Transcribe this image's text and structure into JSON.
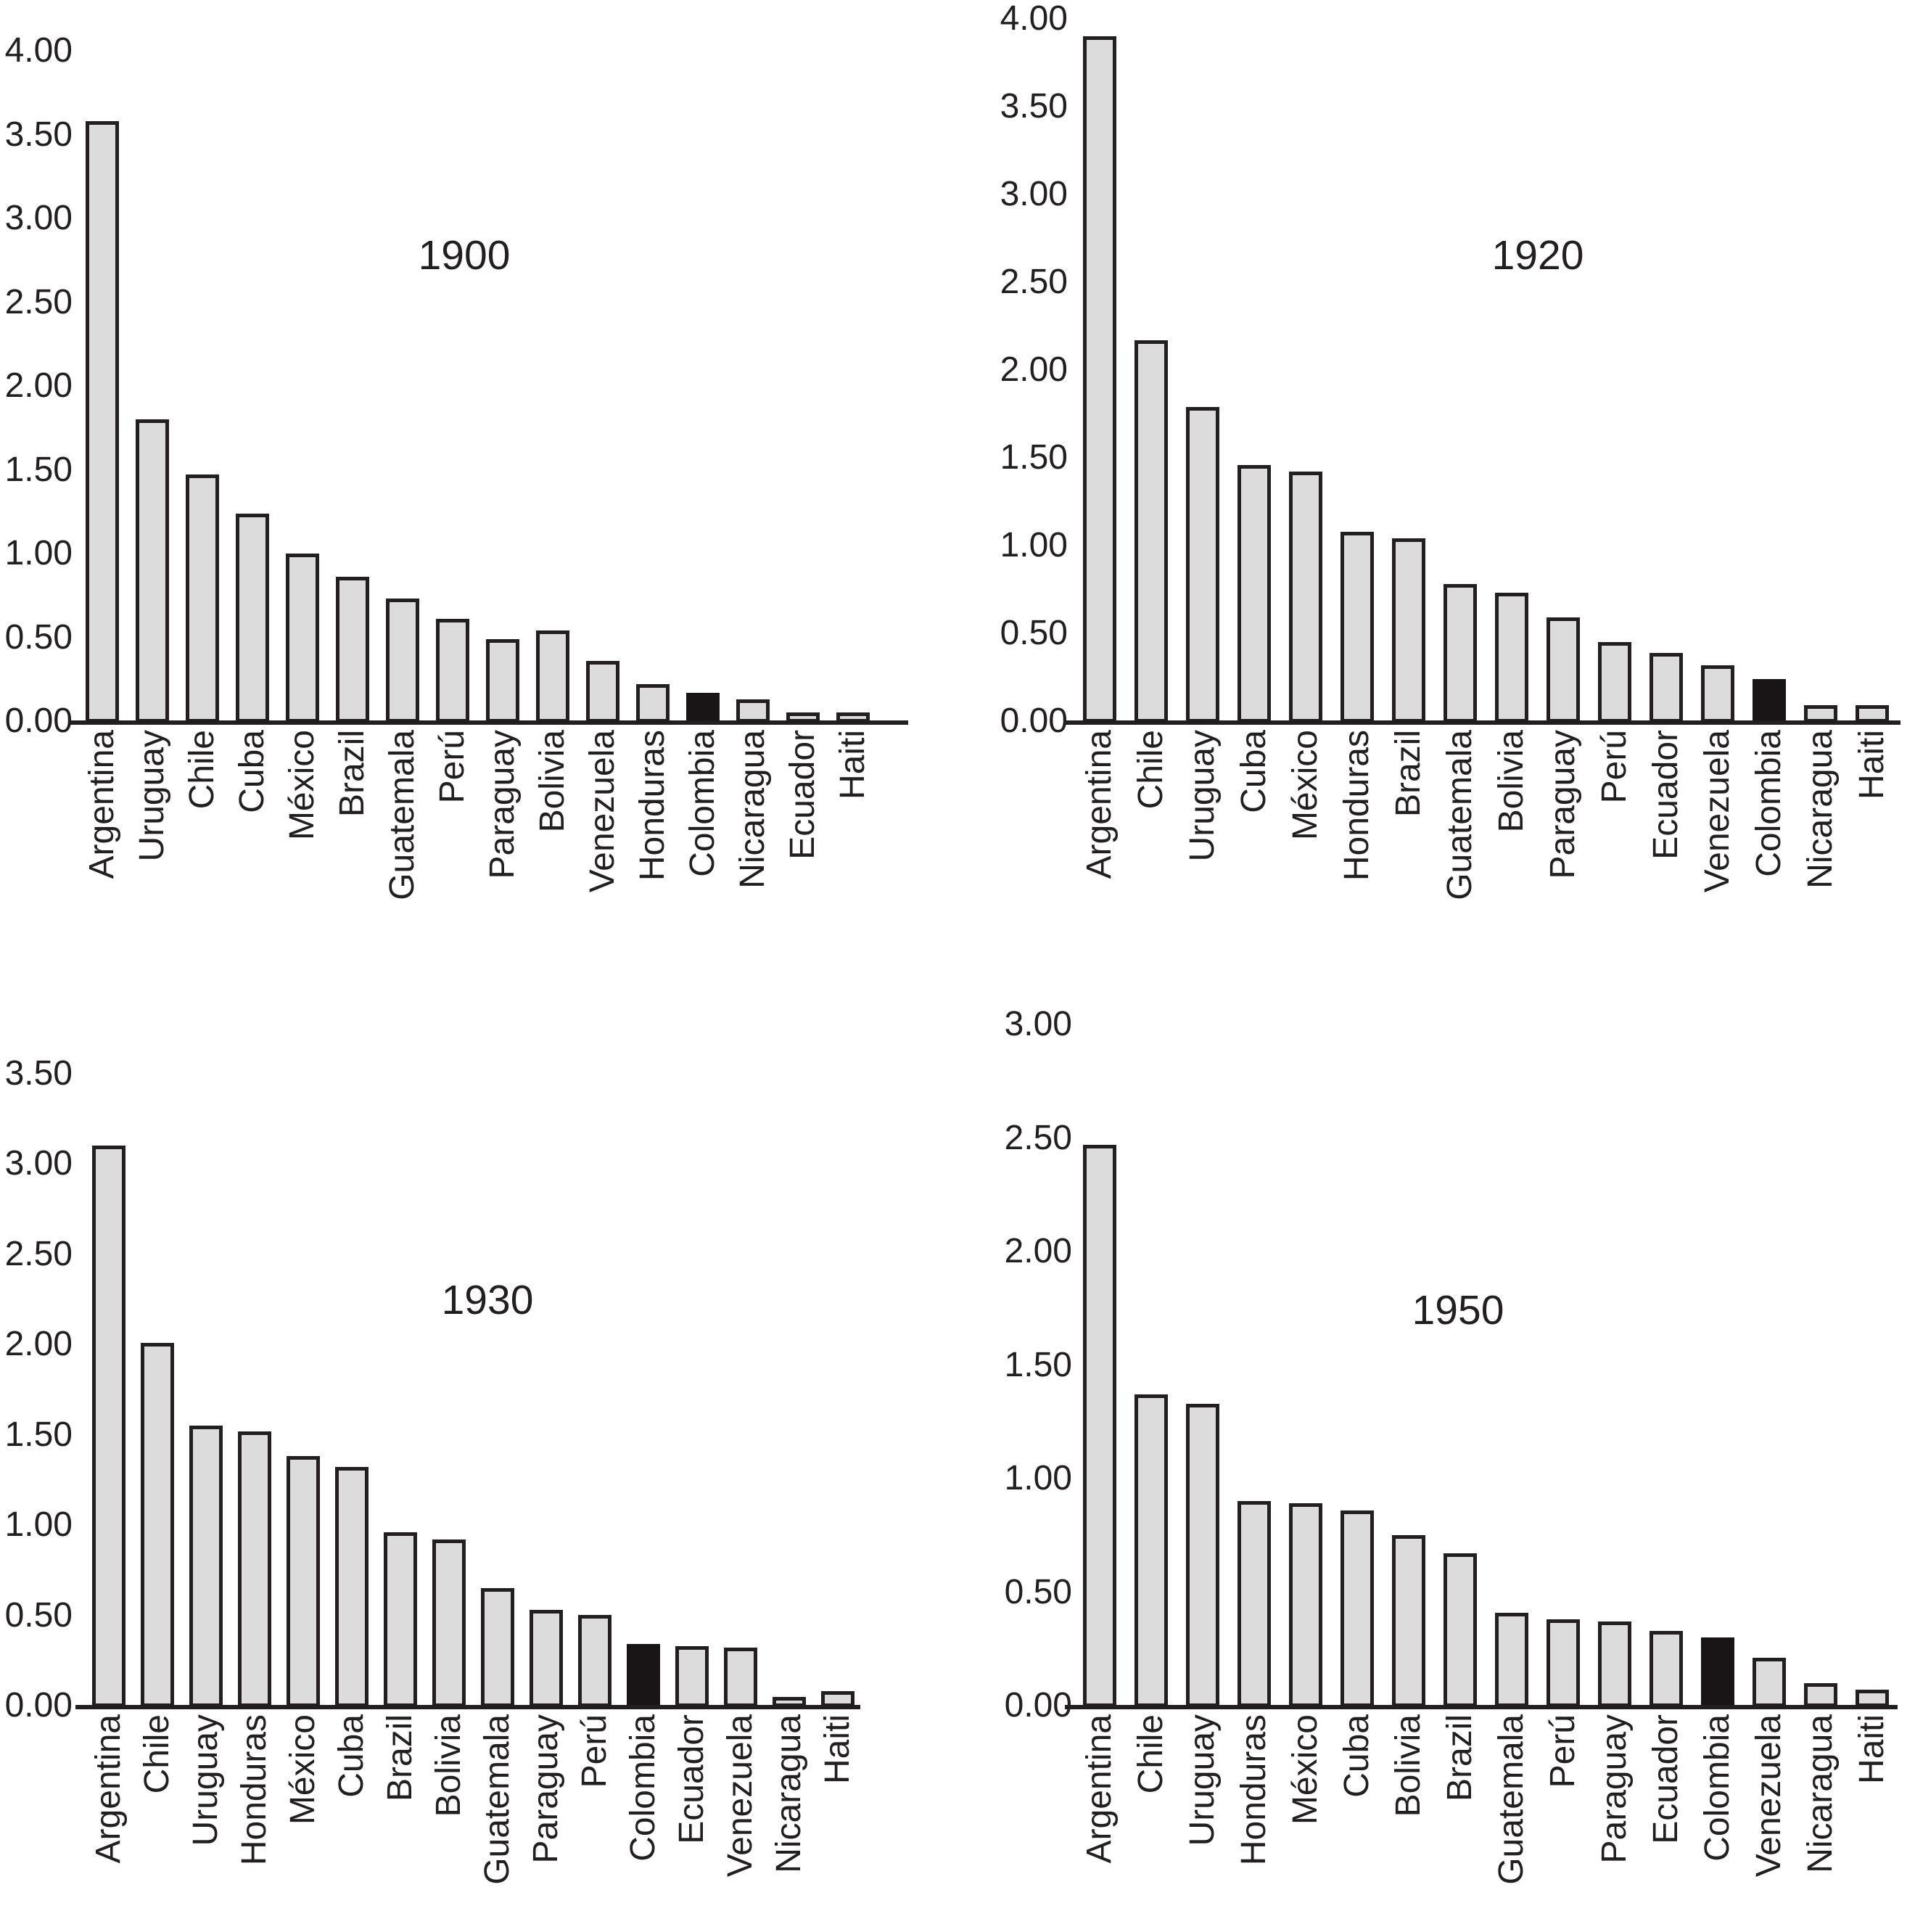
{
  "figure": {
    "description": "Four-panel bar chart figure comparing Latin American countries at four dates",
    "highlight_country": "Colombia",
    "colors": {
      "bar_fill": "#dcdcdc",
      "bar_stroke": "#231f20",
      "highlight_fill": "#191516",
      "axis_line": "#231f20",
      "text": "#231f20"
    }
  },
  "chart_data": [
    {
      "type": "bar",
      "title": "1900",
      "categories": [
        "Argentina",
        "Uruguay",
        "Chile",
        "Cuba",
        "México",
        "Brazil",
        "Guatemala",
        "Perú",
        "Paraguay",
        "Bolivia",
        "Venezuela",
        "Honduras",
        "Colombia",
        "Nicaragua",
        "Ecuador",
        "Haiti"
      ],
      "values": [
        3.58,
        1.8,
        1.47,
        1.24,
        1.0,
        0.86,
        0.73,
        0.61,
        0.49,
        0.54,
        0.36,
        0.22,
        0.17,
        0.13,
        0.05,
        0.05
      ],
      "highlight_category": "Colombia",
      "ylim": [
        0,
        4.0
      ],
      "ytick_labels": [
        "0.00",
        "0.50",
        "1.00",
        "1.50",
        "2.00",
        "2.50",
        "3.00",
        "3.50",
        "4.00"
      ],
      "xlabel": "",
      "ylabel": "",
      "grid": false,
      "legend": "none"
    },
    {
      "type": "bar",
      "title": "1920",
      "categories": [
        "Argentina",
        "Chile",
        "Uruguay",
        "Cuba",
        "México",
        "Honduras",
        "Brazil",
        "Guatemala",
        "Bolivia",
        "Paraguay",
        "Perú",
        "Ecuador",
        "Venezuela",
        "Colombia",
        "Nicaragua",
        "Haiti"
      ],
      "values": [
        3.9,
        2.17,
        1.79,
        1.46,
        1.42,
        1.08,
        1.04,
        0.78,
        0.73,
        0.59,
        0.45,
        0.39,
        0.32,
        0.24,
        0.09,
        0.09
      ],
      "highlight_category": "Colombia",
      "ylim": [
        0,
        4.0
      ],
      "ytick_labels": [
        "0.00",
        "0.50",
        "1.00",
        "1.50",
        "2.00",
        "2.50",
        "3.00",
        "3.50",
        "4.00"
      ],
      "xlabel": "",
      "ylabel": "",
      "grid": false,
      "legend": "none"
    },
    {
      "type": "bar",
      "title": "1930",
      "categories": [
        "Argentina",
        "Chile",
        "Uruguay",
        "Honduras",
        "México",
        "Cuba",
        "Brazil",
        "Bolivia",
        "Guatemala",
        "Paraguay",
        "Perú",
        "Colombia",
        "Ecuador",
        "Venezuela",
        "Nicaragua",
        "Haiti"
      ],
      "values": [
        3.1,
        2.01,
        1.55,
        1.52,
        1.38,
        1.32,
        0.96,
        0.92,
        0.65,
        0.53,
        0.5,
        0.34,
        0.33,
        0.32,
        0.05,
        0.08
      ],
      "highlight_category": "Colombia",
      "ylim": [
        0,
        3.5
      ],
      "ytick_labels": [
        "0.00",
        "0.50",
        "1.00",
        "1.50",
        "2.00",
        "2.50",
        "3.00",
        "3.50"
      ],
      "xlabel": "",
      "ylabel": "",
      "grid": false,
      "legend": "none"
    },
    {
      "type": "bar",
      "title": "1950",
      "categories": [
        "Argentina",
        "Chile",
        "Uruguay",
        "Honduras",
        "México",
        "Cuba",
        "Bolivia",
        "Brazil",
        "Guatemala",
        "Perú",
        "Paraguay",
        "Ecuador",
        "Colombia",
        "Venezuela",
        "Nicaragua",
        "Haiti"
      ],
      "values": [
        2.47,
        1.37,
        1.33,
        0.9,
        0.89,
        0.86,
        0.75,
        0.67,
        0.41,
        0.38,
        0.37,
        0.33,
        0.3,
        0.21,
        0.1,
        0.07
      ],
      "highlight_category": "Colombia",
      "ylim": [
        0,
        3.0
      ],
      "ytick_labels": [
        "0.00",
        "0.50",
        "1.00",
        "1.50",
        "2.00",
        "2.50",
        "3.00"
      ],
      "xlabel": "",
      "ylabel": "",
      "grid": false,
      "legend": "none"
    }
  ]
}
